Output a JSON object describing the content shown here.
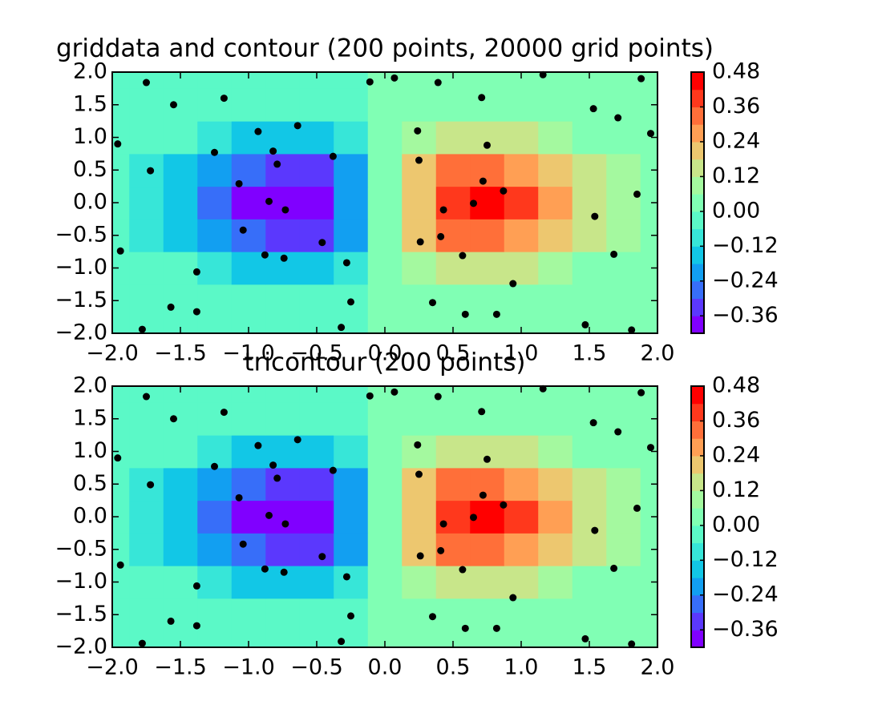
{
  "chart_data": [
    {
      "type": "contour",
      "title": "griddata and contour (200 points, 20000 grid points)",
      "xlim": [
        -2,
        2
      ],
      "ylim": [
        -2,
        2
      ],
      "xticks": [
        {
          "value": -2,
          "label": "−2.0"
        },
        {
          "value": -1.5,
          "label": "−1.5"
        },
        {
          "value": -1,
          "label": "−1.0"
        },
        {
          "value": -0.5,
          "label": "−0.5"
        },
        {
          "value": 0,
          "label": "0.0"
        },
        {
          "value": 0.5,
          "label": "0.5"
        },
        {
          "value": 1,
          "label": "1.0"
        },
        {
          "value": 1.5,
          "label": "1.5"
        },
        {
          "value": 2,
          "label": "2.0"
        }
      ],
      "yticks": [
        {
          "value": -2,
          "label": "−2.0"
        },
        {
          "value": -1.5,
          "label": "−1.5"
        },
        {
          "value": -1,
          "label": "−1.0"
        },
        {
          "value": -0.5,
          "label": "−0.5"
        },
        {
          "value": 0,
          "label": "0.0"
        },
        {
          "value": 0.5,
          "label": "0.5"
        },
        {
          "value": 1,
          "label": "1.0"
        },
        {
          "value": 1.5,
          "label": "1.5"
        },
        {
          "value": 2,
          "label": "2.0"
        }
      ],
      "x_grid": [
        -2,
        -1.75,
        -1.5,
        -1.25,
        -1,
        -0.75,
        -0.5,
        -0.25,
        0,
        0.25,
        0.5,
        0.75,
        1,
        1.25,
        1.5,
        1.75,
        2
      ],
      "y_grid": [
        -2,
        -1.5,
        -1,
        -0.5,
        0,
        0.5,
        1,
        1.5,
        2
      ],
      "z": [
        [
          -0.001,
          -0.002,
          -0.003,
          -0.005,
          -0.007,
          -0.008,
          -0.007,
          -0.004,
          0,
          0.004,
          0.007,
          0.008,
          0.007,
          0.005,
          0.003,
          0.002,
          0.001
        ],
        [
          -0.004,
          -0.009,
          -0.017,
          -0.028,
          -0.039,
          -0.045,
          -0.041,
          -0.025,
          0,
          0.025,
          0.041,
          0.045,
          0.039,
          0.028,
          0.017,
          0.009,
          0.004
        ],
        [
          -0.014,
          -0.03,
          -0.058,
          -0.096,
          -0.135,
          -0.157,
          -0.143,
          -0.086,
          0,
          0.086,
          0.143,
          0.157,
          0.135,
          0.096,
          0.058,
          0.03,
          0.014
        ],
        [
          -0.029,
          -0.064,
          -0.123,
          -0.204,
          -0.287,
          -0.333,
          -0.303,
          -0.183,
          0,
          0.183,
          0.303,
          0.333,
          0.287,
          0.204,
          0.123,
          0.064,
          0.029
        ],
        [
          -0.037,
          -0.082,
          -0.158,
          -0.262,
          -0.368,
          -0.427,
          -0.389,
          -0.235,
          0,
          0.235,
          0.389,
          0.427,
          0.368,
          0.262,
          0.158,
          0.082,
          0.037
        ],
        [
          -0.029,
          -0.064,
          -0.123,
          -0.204,
          -0.287,
          -0.333,
          -0.303,
          -0.183,
          0,
          0.183,
          0.303,
          0.333,
          0.287,
          0.204,
          0.123,
          0.064,
          0.029
        ],
        [
          -0.014,
          -0.03,
          -0.058,
          -0.096,
          -0.135,
          -0.157,
          -0.143,
          -0.086,
          0,
          0.086,
          0.143,
          0.157,
          0.135,
          0.096,
          0.058,
          0.03,
          0.014
        ],
        [
          -0.004,
          -0.009,
          -0.017,
          -0.028,
          -0.039,
          -0.045,
          -0.041,
          -0.025,
          0,
          0.025,
          0.041,
          0.045,
          0.039,
          0.028,
          0.017,
          0.009,
          0.004
        ],
        [
          -0.001,
          -0.002,
          -0.003,
          -0.005,
          -0.007,
          -0.008,
          -0.007,
          -0.004,
          0,
          0.004,
          0.007,
          0.008,
          0.007,
          0.005,
          0.003,
          0.002,
          0.001
        ]
      ],
      "levels": [
        -0.42,
        -0.36,
        -0.3,
        -0.24,
        -0.18,
        -0.12,
        -0.06,
        0,
        0.06,
        0.12,
        0.18,
        0.24,
        0.3,
        0.36,
        0.42,
        0.48
      ],
      "colors": [
        "#8000ff",
        "#5b38fd",
        "#376ef9",
        "#129ff1",
        "#12c7e6",
        "#37e6d8",
        "#5bf9c7",
        "#80ffb4",
        "#a4f99f",
        "#c8e68a",
        "#edc76f",
        "#ff9f54",
        "#ff6f39",
        "#ff381c",
        "#ff0000"
      ],
      "cbar_ticks": [
        {
          "value": -0.36,
          "label": "−0.36"
        },
        {
          "value": -0.24,
          "label": "−0.24"
        },
        {
          "value": -0.12,
          "label": "−0.12"
        },
        {
          "value": 0,
          "label": "0.00"
        },
        {
          "value": 0.12,
          "label": "0.12"
        },
        {
          "value": 0.24,
          "label": "0.24"
        },
        {
          "value": 0.36,
          "label": "0.36"
        },
        {
          "value": 0.48,
          "label": "0.48"
        }
      ],
      "point_color": "#000000",
      "points_x": [
        -1.75,
        -1.55,
        -1.18,
        -0.93,
        -0.64,
        -0.82,
        -0.79,
        -1.07,
        -0.85,
        -0.73,
        -1.04,
        -0.88,
        -0.74,
        -0.46,
        -0.28,
        -1.38,
        -1.57,
        -1.38,
        -1.78,
        -1.94,
        -1.96,
        -1.72,
        0.07,
        0.39,
        0.24,
        0.71,
        1.16,
        1.53,
        1.71,
        1.88,
        1.95,
        0.25,
        0.75,
        0.72,
        0.87,
        0.43,
        0.65,
        0.41,
        0.26,
        0.57,
        0.94,
        1.54,
        1.68,
        1.85,
        0.35,
        0.59,
        0.82,
        1.47,
        1.81,
        -0.32,
        -0.11,
        -0.38,
        -0.25,
        -1.25
      ],
      "points_y": [
        1.84,
        1.5,
        1.6,
        1.09,
        1.18,
        0.79,
        0.59,
        0.29,
        0.02,
        -0.11,
        -0.42,
        -0.8,
        -0.85,
        -0.61,
        -0.92,
        -1.06,
        -1.6,
        -1.67,
        -1.94,
        -0.74,
        0.9,
        0.49,
        1.91,
        1.84,
        1.1,
        1.61,
        1.96,
        1.44,
        1.3,
        1.9,
        1.06,
        0.65,
        0.88,
        0.33,
        0.18,
        -0.11,
        -0.01,
        -0.52,
        -0.6,
        -0.81,
        -1.24,
        -0.21,
        -0.79,
        0.13,
        -1.53,
        -1.71,
        -1.71,
        -1.87,
        -1.95,
        -1.91,
        1.85,
        0.71,
        -1.52,
        0.77
      ]
    },
    {
      "type": "contour",
      "title": "tricontour (200 points)",
      "xlim": [
        -2,
        2
      ],
      "ylim": [
        -2,
        2
      ],
      "xticks": [
        {
          "value": -2,
          "label": "−2.0"
        },
        {
          "value": -1.5,
          "label": "−1.5"
        },
        {
          "value": -1,
          "label": "−1.0"
        },
        {
          "value": -0.5,
          "label": "−0.5"
        },
        {
          "value": 0,
          "label": "0.0"
        },
        {
          "value": 0.5,
          "label": "0.5"
        },
        {
          "value": 1,
          "label": "1.0"
        },
        {
          "value": 1.5,
          "label": "1.5"
        },
        {
          "value": 2,
          "label": "2.0"
        }
      ],
      "yticks": [
        {
          "value": -2,
          "label": "−2.0"
        },
        {
          "value": -1.5,
          "label": "−1.5"
        },
        {
          "value": -1,
          "label": "−1.0"
        },
        {
          "value": -0.5,
          "label": "−0.5"
        },
        {
          "value": 0,
          "label": "0.0"
        },
        {
          "value": 0.5,
          "label": "0.5"
        },
        {
          "value": 1,
          "label": "1.0"
        },
        {
          "value": 1.5,
          "label": "1.5"
        },
        {
          "value": 2,
          "label": "2.0"
        }
      ],
      "x_grid": [
        -2,
        -1.75,
        -1.5,
        -1.25,
        -1,
        -0.75,
        -0.5,
        -0.25,
        0,
        0.25,
        0.5,
        0.75,
        1,
        1.25,
        1.5,
        1.75,
        2
      ],
      "y_grid": [
        -2,
        -1.5,
        -1,
        -0.5,
        0,
        0.5,
        1,
        1.5,
        2
      ],
      "z": [
        [
          -0.001,
          -0.002,
          -0.003,
          -0.005,
          -0.007,
          -0.008,
          -0.007,
          -0.004,
          0,
          0.004,
          0.007,
          0.008,
          0.007,
          0.005,
          0.003,
          0.002,
          0.001
        ],
        [
          -0.004,
          -0.009,
          -0.017,
          -0.028,
          -0.039,
          -0.045,
          -0.041,
          -0.025,
          0,
          0.025,
          0.041,
          0.045,
          0.039,
          0.028,
          0.017,
          0.009,
          0.004
        ],
        [
          -0.014,
          -0.03,
          -0.058,
          -0.096,
          -0.135,
          -0.157,
          -0.143,
          -0.086,
          0,
          0.086,
          0.143,
          0.157,
          0.135,
          0.096,
          0.058,
          0.03,
          0.014
        ],
        [
          -0.029,
          -0.064,
          -0.123,
          -0.204,
          -0.287,
          -0.333,
          -0.303,
          -0.183,
          0,
          0.183,
          0.303,
          0.333,
          0.287,
          0.204,
          0.123,
          0.064,
          0.029
        ],
        [
          -0.037,
          -0.082,
          -0.158,
          -0.262,
          -0.368,
          -0.427,
          -0.389,
          -0.235,
          0,
          0.235,
          0.389,
          0.427,
          0.368,
          0.262,
          0.158,
          0.082,
          0.037
        ],
        [
          -0.029,
          -0.064,
          -0.123,
          -0.204,
          -0.287,
          -0.333,
          -0.303,
          -0.183,
          0,
          0.183,
          0.303,
          0.333,
          0.287,
          0.204,
          0.123,
          0.064,
          0.029
        ],
        [
          -0.014,
          -0.03,
          -0.058,
          -0.096,
          -0.135,
          -0.157,
          -0.143,
          -0.086,
          0,
          0.086,
          0.143,
          0.157,
          0.135,
          0.096,
          0.058,
          0.03,
          0.014
        ],
        [
          -0.004,
          -0.009,
          -0.017,
          -0.028,
          -0.039,
          -0.045,
          -0.041,
          -0.025,
          0,
          0.025,
          0.041,
          0.045,
          0.039,
          0.028,
          0.017,
          0.009,
          0.004
        ],
        [
          -0.001,
          -0.002,
          -0.003,
          -0.005,
          -0.007,
          -0.008,
          -0.007,
          -0.004,
          0,
          0.004,
          0.007,
          0.008,
          0.007,
          0.005,
          0.003,
          0.002,
          0.001
        ]
      ],
      "levels": [
        -0.42,
        -0.36,
        -0.3,
        -0.24,
        -0.18,
        -0.12,
        -0.06,
        0,
        0.06,
        0.12,
        0.18,
        0.24,
        0.3,
        0.36,
        0.42,
        0.48
      ],
      "colors": [
        "#8000ff",
        "#5b38fd",
        "#376ef9",
        "#129ff1",
        "#12c7e6",
        "#37e6d8",
        "#5bf9c7",
        "#80ffb4",
        "#a4f99f",
        "#c8e68a",
        "#edc76f",
        "#ff9f54",
        "#ff6f39",
        "#ff381c",
        "#ff0000"
      ],
      "cbar_ticks": [
        {
          "value": -0.36,
          "label": "−0.36"
        },
        {
          "value": -0.24,
          "label": "−0.24"
        },
        {
          "value": -0.12,
          "label": "−0.12"
        },
        {
          "value": 0,
          "label": "0.00"
        },
        {
          "value": 0.12,
          "label": "0.12"
        },
        {
          "value": 0.24,
          "label": "0.24"
        },
        {
          "value": 0.36,
          "label": "0.36"
        },
        {
          "value": 0.48,
          "label": "0.48"
        }
      ],
      "point_color": "#000000",
      "points_x": [
        -1.75,
        -1.55,
        -1.18,
        -0.93,
        -0.64,
        -0.82,
        -0.79,
        -1.07,
        -0.85,
        -0.73,
        -1.04,
        -0.88,
        -0.74,
        -0.46,
        -0.28,
        -1.38,
        -1.57,
        -1.38,
        -1.78,
        -1.94,
        -1.96,
        -1.72,
        0.07,
        0.39,
        0.24,
        0.71,
        1.16,
        1.53,
        1.71,
        1.88,
        1.95,
        0.25,
        0.75,
        0.72,
        0.87,
        0.43,
        0.65,
        0.41,
        0.26,
        0.57,
        0.94,
        1.54,
        1.68,
        1.85,
        0.35,
        0.59,
        0.82,
        1.47,
        1.81,
        -0.32,
        -0.11,
        -0.38,
        -0.25,
        -1.25
      ],
      "points_y": [
        1.84,
        1.5,
        1.6,
        1.09,
        1.18,
        0.79,
        0.59,
        0.29,
        0.02,
        -0.11,
        -0.42,
        -0.8,
        -0.85,
        -0.61,
        -0.92,
        -1.06,
        -1.6,
        -1.67,
        -1.94,
        -0.74,
        0.9,
        0.49,
        1.91,
        1.84,
        1.1,
        1.61,
        1.96,
        1.44,
        1.3,
        1.9,
        1.06,
        0.65,
        0.88,
        0.33,
        0.18,
        -0.11,
        -0.01,
        -0.52,
        -0.6,
        -0.81,
        -1.24,
        -0.21,
        -0.79,
        0.13,
        -1.53,
        -1.71,
        -1.71,
        -1.87,
        -1.95,
        -1.91,
        1.85,
        0.71,
        -1.52,
        0.77
      ]
    }
  ]
}
